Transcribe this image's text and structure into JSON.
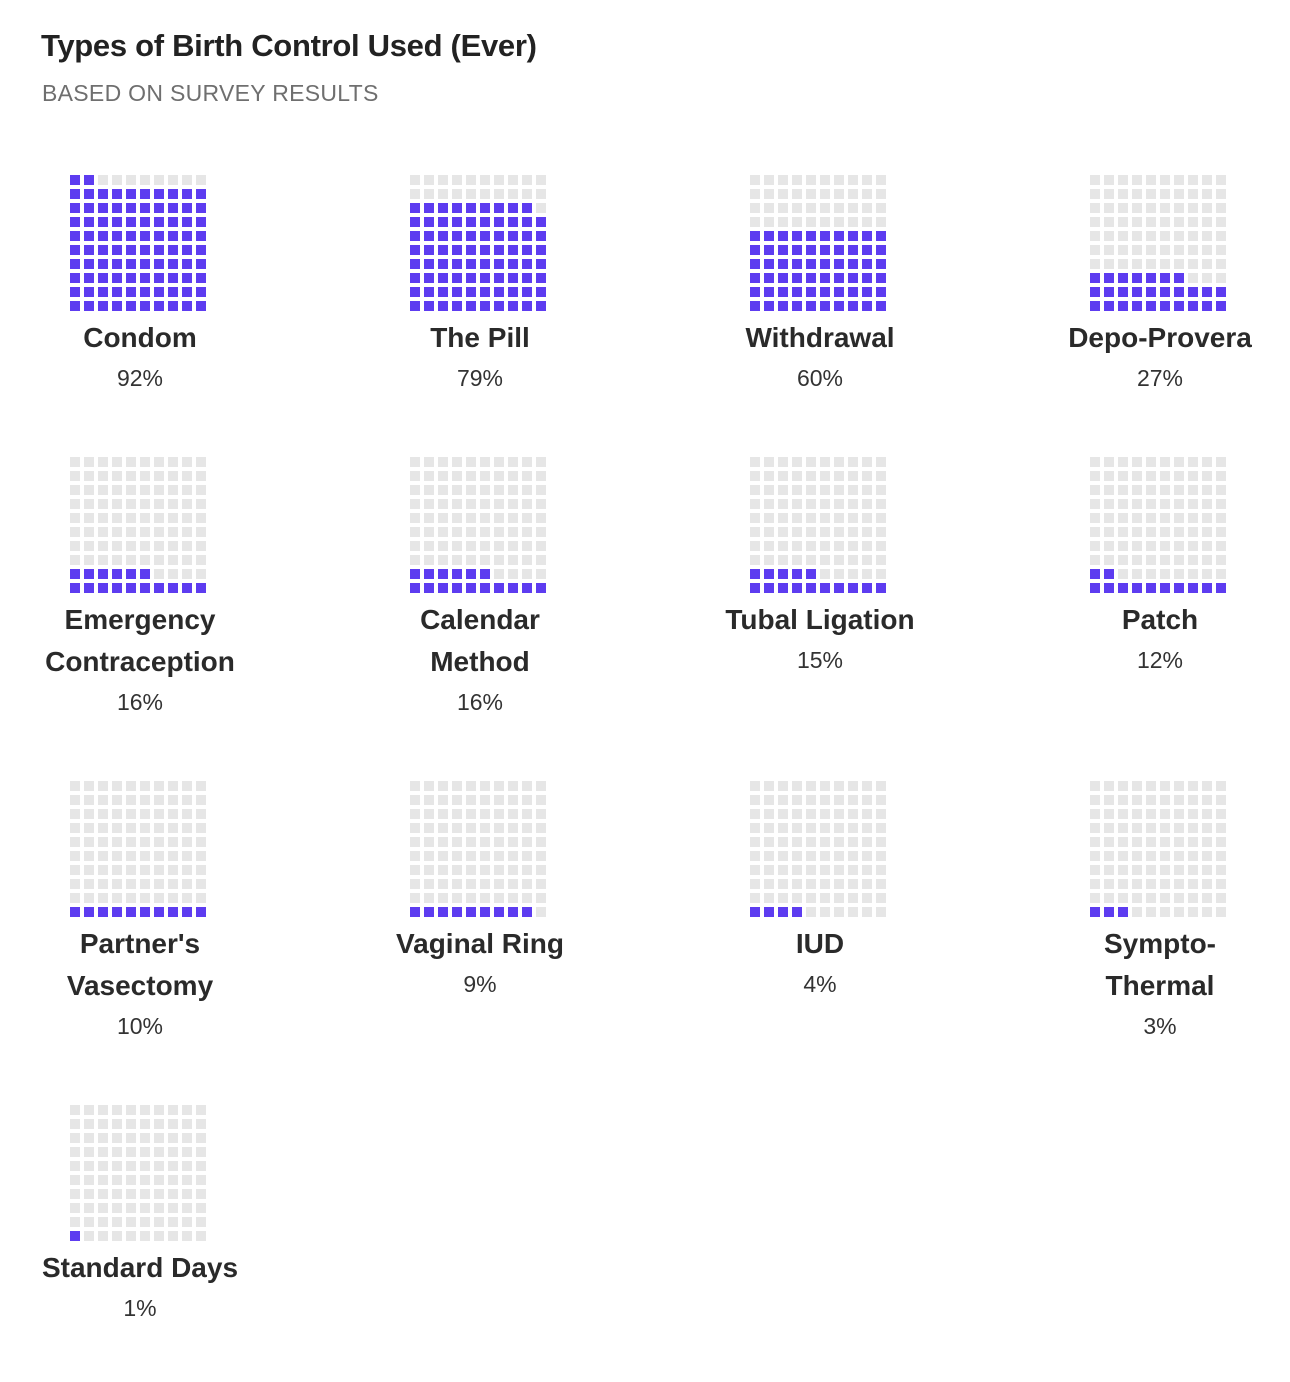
{
  "title": "Types of Birth Control Used (Ever)",
  "subtitle": "BASED ON SURVEY RESULTS",
  "colors": {
    "filled": "#5d3cf0",
    "empty": "#e6e6e6"
  },
  "chart_data": {
    "type": "waffle",
    "grid": "10x10",
    "unit": "percent",
    "items": [
      {
        "label": "Condom",
        "label_lines": [
          "Condom"
        ],
        "value": 92,
        "value_text": "92%"
      },
      {
        "label": "The Pill",
        "label_lines": [
          "The Pill"
        ],
        "value": 79,
        "value_text": "79%"
      },
      {
        "label": "Withdrawal",
        "label_lines": [
          "Withdrawal"
        ],
        "value": 60,
        "value_text": "60%"
      },
      {
        "label": "Depo-Provera",
        "label_lines": [
          "Depo-Provera"
        ],
        "value": 27,
        "value_text": "27%"
      },
      {
        "label": "Emergency Contraception",
        "label_lines": [
          "Emergency",
          "Contraception"
        ],
        "value": 16,
        "value_text": "16%"
      },
      {
        "label": "Calendar Method",
        "label_lines": [
          "Calendar",
          "Method"
        ],
        "value": 16,
        "value_text": "16%"
      },
      {
        "label": "Tubal Ligation",
        "label_lines": [
          "Tubal Ligation"
        ],
        "value": 15,
        "value_text": "15%"
      },
      {
        "label": "Patch",
        "label_lines": [
          "Patch"
        ],
        "value": 12,
        "value_text": "12%"
      },
      {
        "label": "Partner's Vasectomy",
        "label_lines": [
          "Partner's",
          "Vasectomy"
        ],
        "value": 10,
        "value_text": "10%"
      },
      {
        "label": "Vaginal Ring",
        "label_lines": [
          "Vaginal Ring"
        ],
        "value": 9,
        "value_text": "9%"
      },
      {
        "label": "IUD",
        "label_lines": [
          "IUD"
        ],
        "value": 4,
        "value_text": "4%"
      },
      {
        "label": "Sympto-Thermal",
        "label_lines": [
          "Sympto-",
          "Thermal"
        ],
        "value": 3,
        "value_text": "3%"
      },
      {
        "label": "Standard Days",
        "label_lines": [
          "Standard Days"
        ],
        "value": 1,
        "value_text": "1%"
      }
    ]
  }
}
